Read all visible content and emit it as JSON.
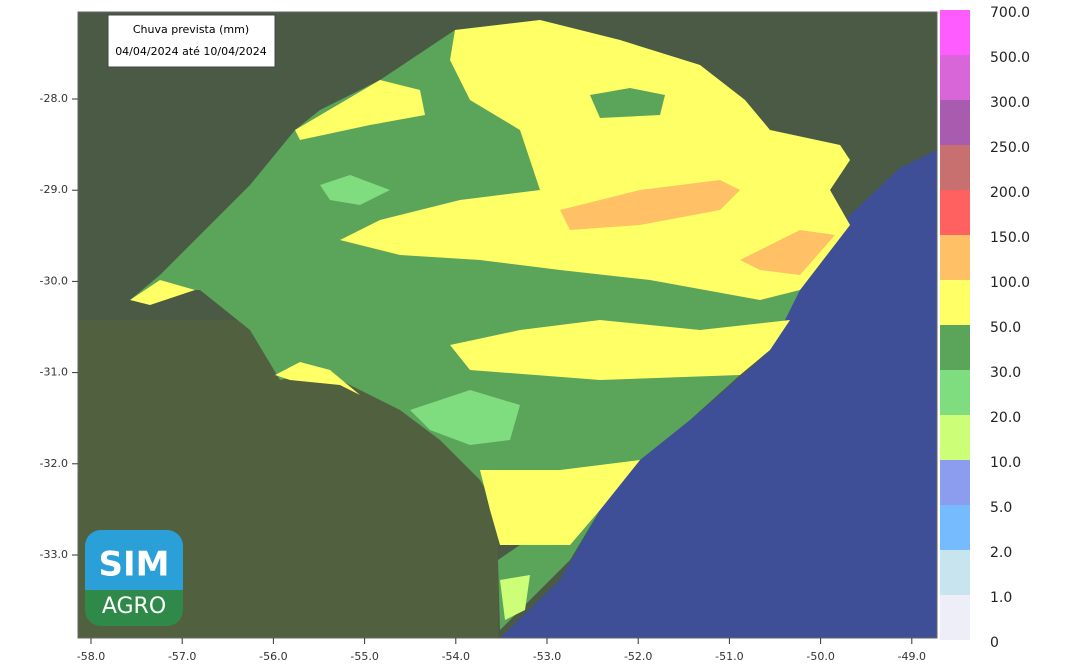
{
  "header": {
    "title": "Chuva prevista (mm)",
    "period": "04/04/2024 até 10/04/2024"
  },
  "map": {
    "lat_ticks": [
      "-28.0",
      "-29.0",
      "-30.0",
      "-31.0",
      "-32.0",
      "-33.0"
    ],
    "lon_ticks": [
      "-58.0",
      "-57.0",
      "-56.0",
      "-55.0",
      "-54.0",
      "-53.0",
      "-52.0",
      "-51.0",
      "-50.0",
      "-49.0"
    ]
  },
  "legend": {
    "labels": [
      "700.0",
      "500.0",
      "300.0",
      "250.0",
      "200.0",
      "150.0",
      "100.0",
      "50.0",
      "30.0",
      "20.0",
      "10.0",
      "5.0",
      "2.0",
      "1.0",
      "0"
    ],
    "colors": [
      "#ff5cff",
      "#d866d8",
      "#a85cb0",
      "#c87070",
      "#ff6060",
      "#ffc066",
      "#ffff66",
      "#5aa55a",
      "#7fdc7f",
      "#ccff77",
      "#8c9cee",
      "#77bbff",
      "#c8e4ee",
      "#eeeef8"
    ]
  },
  "logo": {
    "top": "SIM",
    "bottom": "AGRO"
  }
}
